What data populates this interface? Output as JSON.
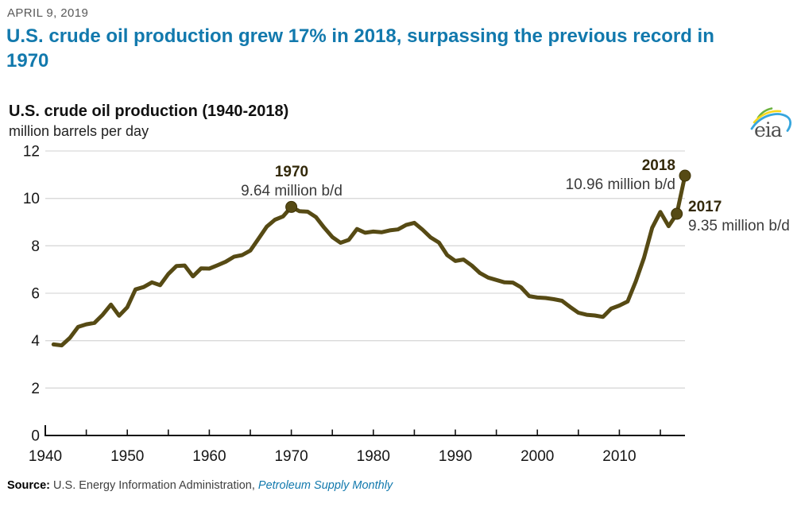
{
  "page": {
    "date": "APRIL 9, 2019",
    "headline": "U.S. crude oil production grew 17% in 2018, surpassing the previous record in 1970",
    "logo_text": "eia",
    "source_label": "Source:",
    "source_org": " U.S. Energy Information Administration, ",
    "source_pub": "Petroleum Supply Monthly"
  },
  "colors": {
    "headline_blue": "#1279ad",
    "link_blue": "#1279ad",
    "date_gray": "#595959",
    "line_olive": "#564a14",
    "marker_edge": "#3d3206",
    "annotation_year": "#33290a",
    "annotation_value": "#3a3a3a",
    "grid_gray": "#d9d9d9",
    "axis_black": "#111111",
    "logo_green": "#6cb33f",
    "logo_yellow": "#f8d81c",
    "logo_blue": "#37a6dd"
  },
  "chart_data": {
    "type": "line",
    "title": "U.S. crude oil production (1940-2018)",
    "subtitle": "million barrels per day",
    "xlabel": "",
    "ylabel": "million barrels per day",
    "xlim": [
      1940,
      2018
    ],
    "ylim": [
      0,
      12
    ],
    "grid": "horizontal",
    "legend": "none",
    "yticks": [
      0,
      2,
      4,
      6,
      8,
      10,
      12
    ],
    "xticks_labeled": [
      1940,
      1950,
      1960,
      1970,
      1980,
      1990,
      2000,
      2010
    ],
    "xticks_minor": [
      1940,
      1945,
      1950,
      1955,
      1960,
      1965,
      1970,
      1975,
      1980,
      1985,
      1990,
      1995,
      2000,
      2005,
      2010,
      2015
    ],
    "series": [
      {
        "name": "U.S. crude oil production (million barrels per day)",
        "color": "#564a14",
        "x": [
          1941,
          1942,
          1943,
          1944,
          1945,
          1946,
          1947,
          1948,
          1949,
          1950,
          1951,
          1952,
          1953,
          1954,
          1955,
          1956,
          1957,
          1958,
          1959,
          1960,
          1961,
          1962,
          1963,
          1964,
          1965,
          1966,
          1967,
          1968,
          1969,
          1970,
          1971,
          1972,
          1973,
          1974,
          1975,
          1976,
          1977,
          1978,
          1979,
          1980,
          1981,
          1982,
          1983,
          1984,
          1985,
          1986,
          1987,
          1988,
          1989,
          1990,
          1991,
          1992,
          1993,
          1994,
          1995,
          1996,
          1997,
          1998,
          1999,
          2000,
          2001,
          2002,
          2003,
          2004,
          2005,
          2006,
          2007,
          2008,
          2009,
          2010,
          2011,
          2012,
          2013,
          2014,
          2015,
          2016,
          2017,
          2018
        ],
        "y": [
          3.84,
          3.8,
          4.12,
          4.58,
          4.69,
          4.75,
          5.09,
          5.52,
          5.05,
          5.41,
          6.16,
          6.26,
          6.46,
          6.34,
          6.81,
          7.15,
          7.17,
          6.71,
          7.05,
          7.04,
          7.18,
          7.33,
          7.54,
          7.61,
          7.8,
          8.3,
          8.81,
          9.1,
          9.24,
          9.64,
          9.46,
          9.44,
          9.21,
          8.77,
          8.37,
          8.13,
          8.25,
          8.71,
          8.55,
          8.6,
          8.57,
          8.65,
          8.69,
          8.88,
          8.97,
          8.68,
          8.35,
          8.14,
          7.61,
          7.36,
          7.42,
          7.17,
          6.85,
          6.66,
          6.56,
          6.46,
          6.45,
          6.25,
          5.88,
          5.82,
          5.8,
          5.75,
          5.68,
          5.42,
          5.18,
          5.09,
          5.06,
          5.0,
          5.35,
          5.48,
          5.65,
          6.5,
          7.49,
          8.76,
          9.43,
          8.83,
          9.35,
          10.96
        ]
      }
    ],
    "annotations": [
      {
        "year_label": "1970",
        "value_label": "9.64 million b/d",
        "x": 1970,
        "y": 9.64
      },
      {
        "year_label": "2018",
        "value_label": "10.96 million b/d",
        "x": 2018,
        "y": 10.96
      },
      {
        "year_label": "2017",
        "value_label": "9.35 million b/d",
        "x": 2017,
        "y": 9.35
      }
    ]
  }
}
